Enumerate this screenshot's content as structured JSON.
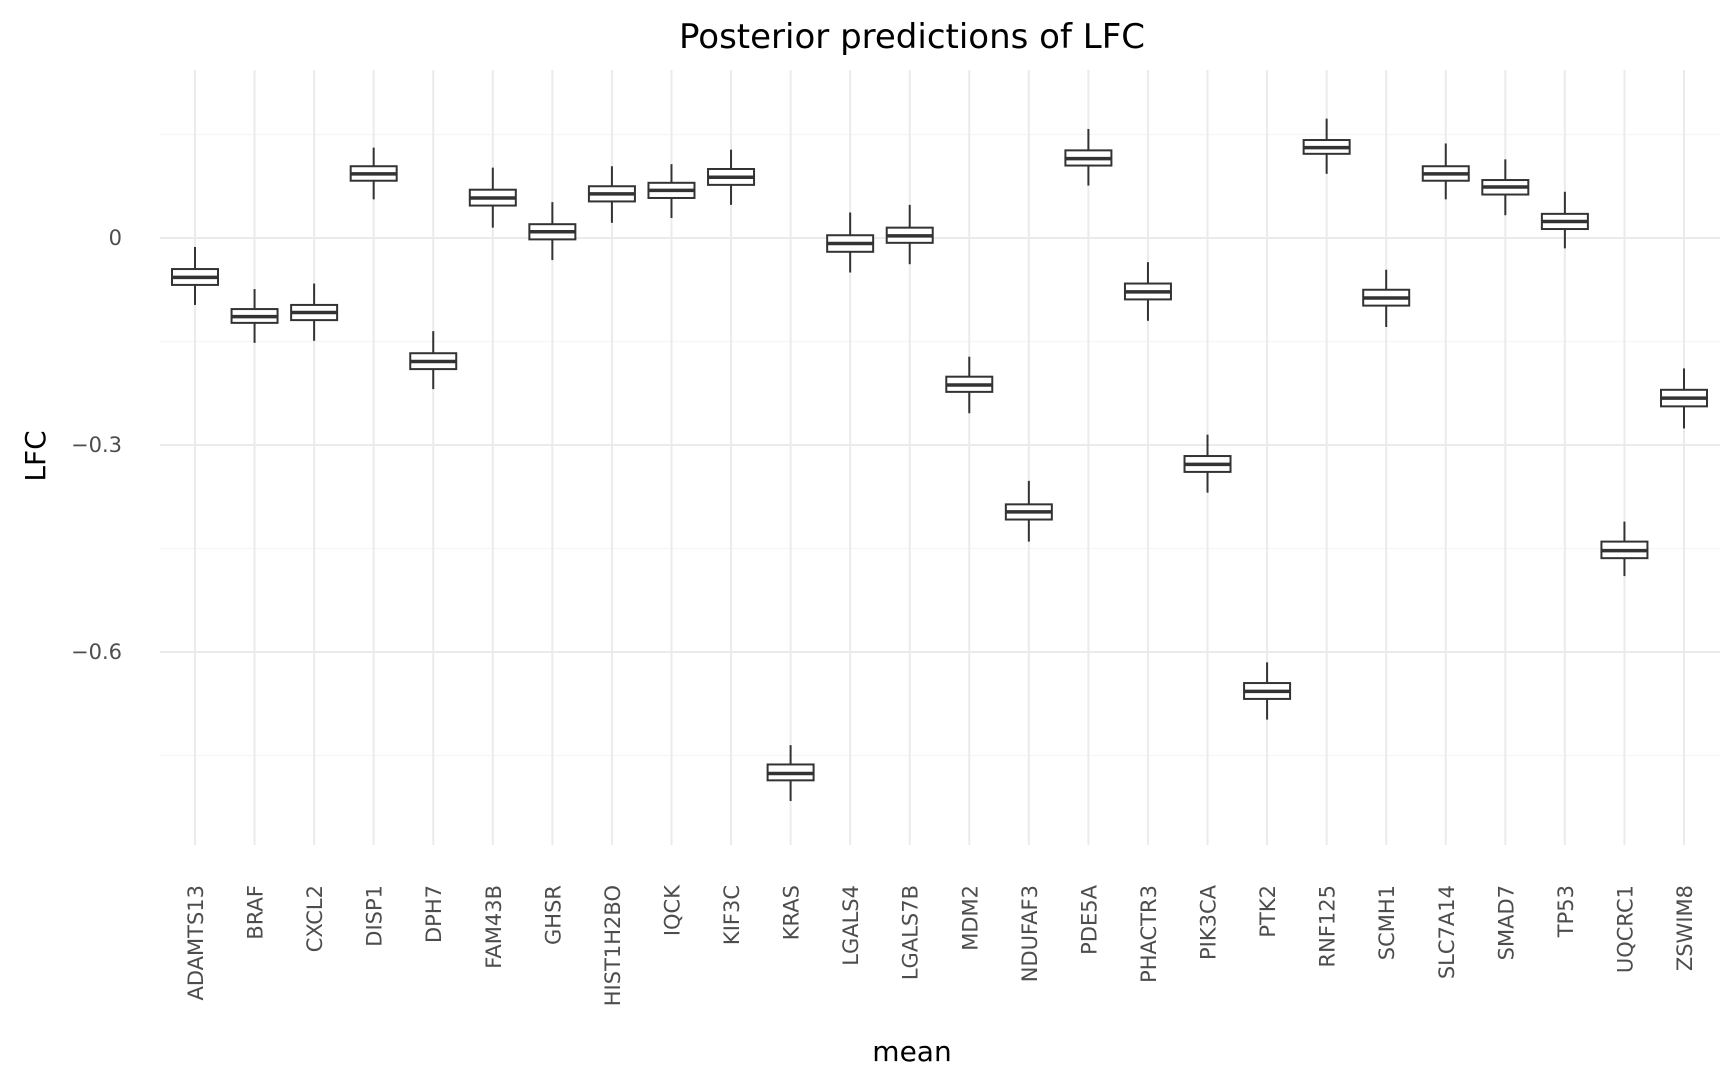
{
  "chart_data": {
    "type": "boxplot",
    "title": "Posterior predictions of LFC",
    "xlabel": "mean",
    "ylabel": "LFC",
    "ylim": [
      -0.875,
      0.245
    ],
    "y_major_ticks": [
      0,
      -0.3,
      -0.6
    ],
    "y_tick_labels": [
      "0",
      "−0.3",
      "−0.6"
    ],
    "y_minor_ticks": [
      0.15,
      -0.15,
      -0.45,
      -0.75
    ],
    "grid": true,
    "legend": "none",
    "categories": [
      "ADAMTS13",
      "BRAF",
      "CXCL2",
      "DISP1",
      "DPH7",
      "FAM43B",
      "GHSR",
      "HIST1H2BO",
      "IQCK",
      "KIF3C",
      "KRAS",
      "LGALS4",
      "LGALS7B",
      "MDM2",
      "NDUFAF3",
      "PDE5A",
      "PHACTR3",
      "PIK3CA",
      "PTK2",
      "RNF125",
      "SCMH1",
      "SLC7A14",
      "SMAD7",
      "TP53",
      "UQCRC1",
      "ZSWIM8"
    ],
    "boxes": [
      {
        "low": -0.097,
        "q1": -0.068,
        "median": -0.057,
        "q3": -0.045,
        "high": -0.013
      },
      {
        "low": -0.152,
        "q1": -0.123,
        "median": -0.114,
        "q3": -0.103,
        "high": -0.074
      },
      {
        "low": -0.149,
        "q1": -0.119,
        "median": -0.108,
        "q3": -0.097,
        "high": -0.066
      },
      {
        "low": 0.056,
        "q1": 0.083,
        "median": 0.093,
        "q3": 0.104,
        "high": 0.131
      },
      {
        "low": -0.219,
        "q1": -0.19,
        "median": -0.179,
        "q3": -0.167,
        "high": -0.135
      },
      {
        "low": 0.015,
        "q1": 0.047,
        "median": 0.058,
        "q3": 0.07,
        "high": 0.102
      },
      {
        "low": -0.032,
        "q1": -0.002,
        "median": 0.009,
        "q3": 0.02,
        "high": 0.052
      },
      {
        "low": 0.022,
        "q1": 0.053,
        "median": 0.064,
        "q3": 0.075,
        "high": 0.104
      },
      {
        "low": 0.029,
        "q1": 0.058,
        "median": 0.069,
        "q3": 0.08,
        "high": 0.107
      },
      {
        "low": 0.048,
        "q1": 0.077,
        "median": 0.088,
        "q3": 0.1,
        "high": 0.128
      },
      {
        "low": -0.816,
        "q1": -0.786,
        "median": -0.776,
        "q3": -0.763,
        "high": -0.735
      },
      {
        "low": -0.05,
        "q1": -0.02,
        "median": -0.008,
        "q3": 0.004,
        "high": 0.037
      },
      {
        "low": -0.038,
        "q1": -0.007,
        "median": 0.003,
        "q3": 0.015,
        "high": 0.048
      },
      {
        "low": -0.254,
        "q1": -0.223,
        "median": -0.213,
        "q3": -0.201,
        "high": -0.172
      },
      {
        "low": -0.44,
        "q1": -0.408,
        "median": -0.397,
        "q3": -0.386,
        "high": -0.352
      },
      {
        "low": 0.076,
        "q1": 0.105,
        "median": 0.115,
        "q3": 0.127,
        "high": 0.158
      },
      {
        "low": -0.12,
        "q1": -0.089,
        "median": -0.078,
        "q3": -0.066,
        "high": -0.035
      },
      {
        "low": -0.369,
        "q1": -0.339,
        "median": -0.328,
        "q3": -0.316,
        "high": -0.285
      },
      {
        "low": -0.698,
        "q1": -0.668,
        "median": -0.657,
        "q3": -0.645,
        "high": -0.615
      },
      {
        "low": 0.093,
        "q1": 0.122,
        "median": 0.131,
        "q3": 0.142,
        "high": 0.173
      },
      {
        "low": -0.129,
        "q1": -0.098,
        "median": -0.087,
        "q3": -0.075,
        "high": -0.046
      },
      {
        "low": 0.056,
        "q1": 0.083,
        "median": 0.093,
        "q3": 0.104,
        "high": 0.137
      },
      {
        "low": 0.033,
        "q1": 0.063,
        "median": 0.074,
        "q3": 0.084,
        "high": 0.114
      },
      {
        "low": -0.015,
        "q1": 0.013,
        "median": 0.024,
        "q3": 0.035,
        "high": 0.067
      },
      {
        "low": -0.49,
        "q1": -0.464,
        "median": -0.453,
        "q3": -0.44,
        "high": -0.411
      },
      {
        "low": -0.276,
        "q1": -0.244,
        "median": -0.232,
        "q3": -0.22,
        "high": -0.189
      }
    ]
  }
}
